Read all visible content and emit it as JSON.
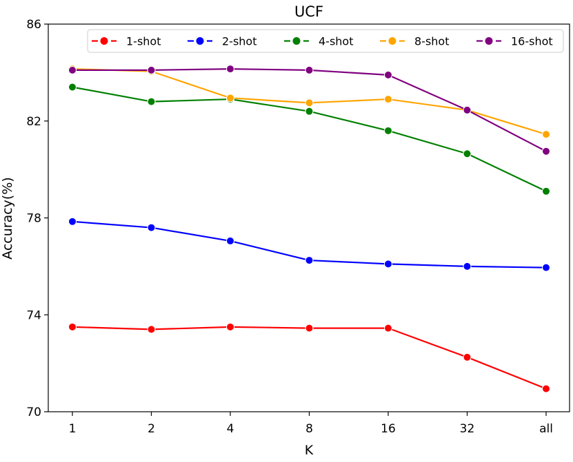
{
  "chart_data": {
    "type": "line",
    "title": "UCF",
    "xlabel": "K",
    "ylabel": "Accuracy(%)",
    "categories": [
      "1",
      "2",
      "4",
      "8",
      "16",
      "32",
      "all"
    ],
    "ylim": [
      70,
      86
    ],
    "yticks": [
      70,
      74,
      78,
      82,
      86
    ],
    "grid": false,
    "legend_position": "top",
    "series": [
      {
        "name": "1-shot",
        "color": "#ff0000",
        "values": [
          73.5,
          73.4,
          73.5,
          73.45,
          73.45,
          72.25,
          70.95
        ]
      },
      {
        "name": "2-shot",
        "color": "#0000ff",
        "values": [
          77.85,
          77.6,
          77.05,
          76.25,
          76.1,
          76.0,
          75.95
        ]
      },
      {
        "name": "4-shot",
        "color": "#008000",
        "values": [
          83.4,
          82.8,
          82.9,
          82.4,
          81.6,
          80.65,
          79.1
        ]
      },
      {
        "name": "8-shot",
        "color": "#ffa500",
        "values": [
          84.15,
          84.05,
          82.95,
          82.75,
          82.9,
          82.45,
          81.45
        ]
      },
      {
        "name": "16-shot",
        "color": "#800080",
        "values": [
          84.1,
          84.1,
          84.15,
          84.1,
          83.9,
          82.45,
          80.75
        ]
      }
    ]
  }
}
